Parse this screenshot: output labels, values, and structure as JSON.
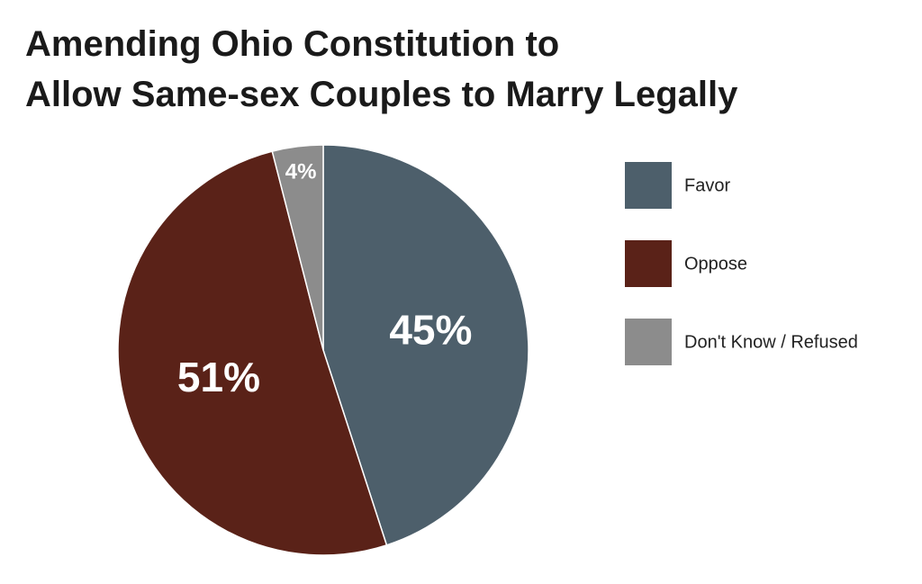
{
  "chart_data": {
    "type": "pie",
    "title": [
      "Amending Ohio Constitution to",
      "Allow Same-sex Couples to Marry Legally"
    ],
    "categories": [
      "Favor",
      "Oppose",
      "Don't Know / Refused"
    ],
    "values": [
      45,
      51,
      4
    ],
    "value_labels": [
      "45%",
      "51%",
      "4%"
    ],
    "colors": [
      "#4d5f6b",
      "#5a2218",
      "#8c8c8c"
    ],
    "legend": "right"
  }
}
